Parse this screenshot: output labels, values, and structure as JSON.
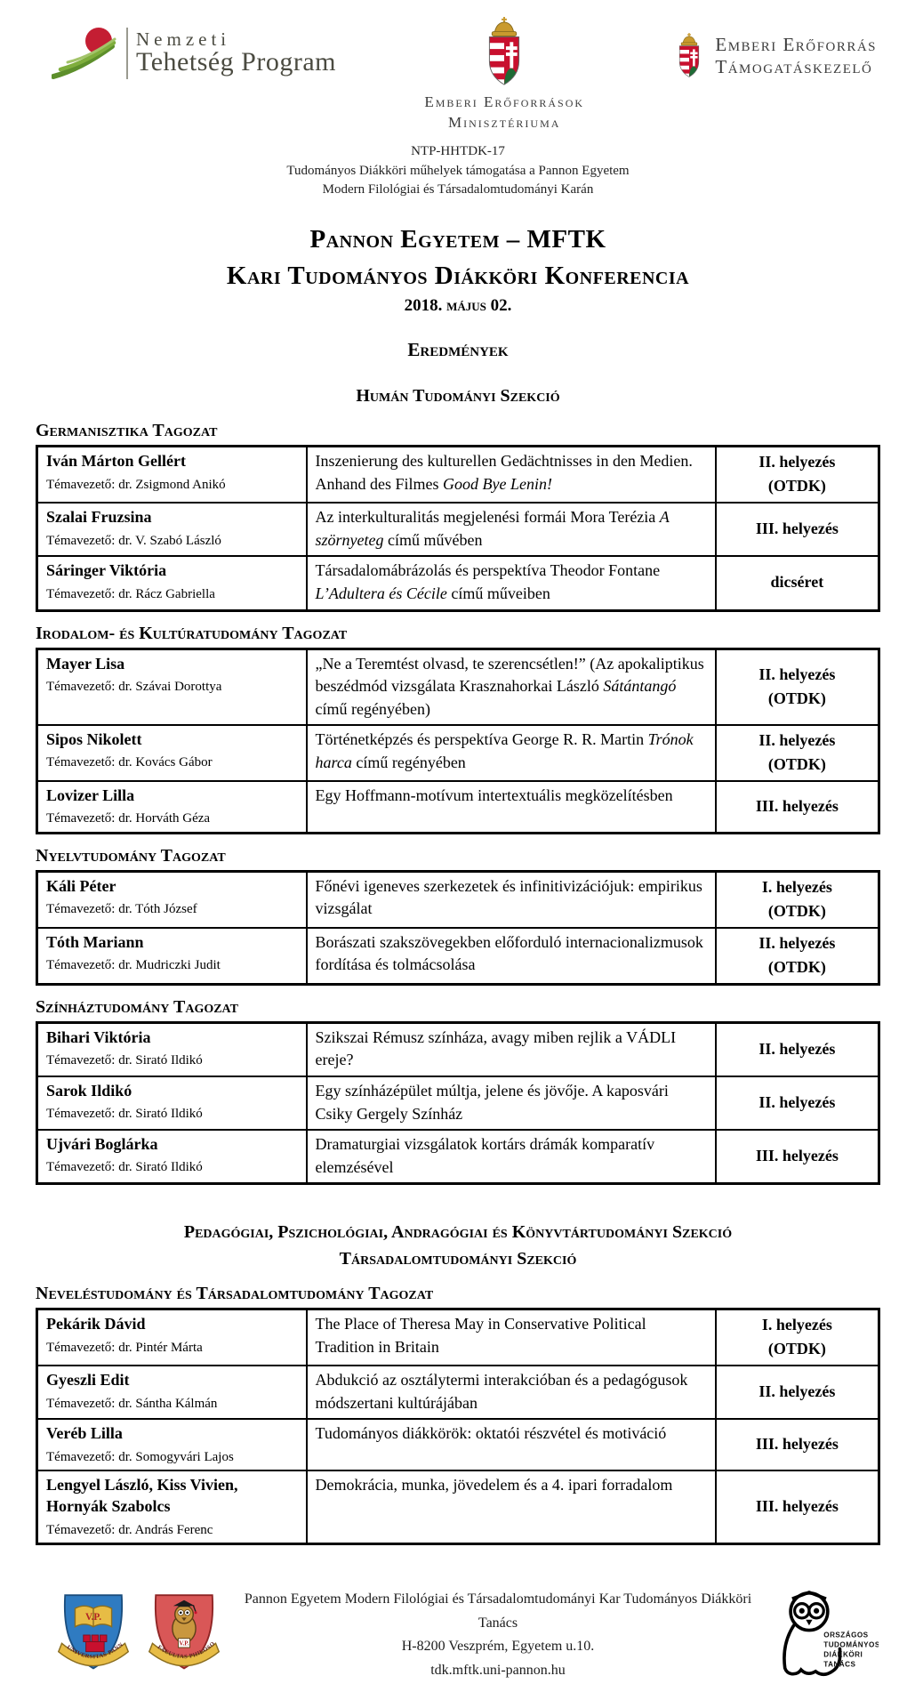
{
  "colors": {
    "ntp_red": "#c41e33",
    "ntp_green_dark": "#5d8f2b",
    "ntp_green_mid": "#7fae3d",
    "ntp_green_light": "#a3c46a",
    "coat_red": "#c8102e",
    "coat_green": "#1e6b35",
    "gold": "#c99a2e",
    "crest_blue": "#2f7bc1",
    "crest_red": "#d95757",
    "text": "#000000"
  },
  "header": {
    "ntp_logo": {
      "line1": "Nemzeti",
      "line2": "Tehetség Program"
    },
    "emmi_logo": {
      "line1": "Emberi Erőforrások",
      "line2": "Minisztériuma"
    },
    "emet_logo": {
      "line1": "Emberi Erőforrás",
      "line2": "Támogatáskezelő"
    },
    "program": {
      "code": "NTP-HHTDK-17",
      "line1": "Tudományos Diákköri műhelyek támogatása a Pannon Egyetem",
      "line2": "Modern Filológiai és Társadalomtudományi Karán"
    }
  },
  "title": {
    "line1": "Pannon Egyetem – MFTK",
    "line2": "Kari Tudományos Diákköri Konferencia",
    "date": "2018. május 02.",
    "results": "Eredmények"
  },
  "section_headings": {
    "human": "Humán Tudományi Szekció",
    "pedagogy_line1": "Pedagógiai, Pszichológiai, Andragógiai és Könyvtártudományi Szekció",
    "pedagogy_line2": "Társadalomtudományi Szekció"
  },
  "sections": [
    {
      "label": "Germanisztika Tagozat",
      "rows": [
        {
          "name": "Iván Márton Gellért",
          "supervisor": "Témavezető: dr. Zsigmond Anikó",
          "title": [
            {
              "t": "Inszenierung des kulturellen Gedächtnisses in den Medien. Anhand des Filmes "
            },
            {
              "t": "Good Bye Lenin!",
              "i": true
            }
          ],
          "award": [
            "II. helyezés",
            "(OTDK)"
          ]
        },
        {
          "name": "Szalai Fruzsina",
          "supervisor": "Témavezető: dr. V. Szabó László",
          "title": [
            {
              "t": "Az interkulturalitás megjelenési formái Mora Terézia "
            },
            {
              "t": "A szörnyeteg",
              "i": true
            },
            {
              "t": " című művében"
            }
          ],
          "award": [
            "III. helyezés"
          ]
        },
        {
          "name": "Sáringer Viktória",
          "supervisor": "Témavezető: dr. Rácz Gabriella",
          "title": [
            {
              "t": "Társadalomábrázolás és perspektíva Theodor Fontane "
            },
            {
              "t": "L’Adultera és Cécile",
              "i": true
            },
            {
              "t": " című műveiben"
            }
          ],
          "award": [
            "dicséret"
          ]
        }
      ]
    },
    {
      "label": "Irodalom- és Kultúratudomány Tagozat",
      "rows": [
        {
          "name": "Mayer Lisa",
          "supervisor": "Témavezető: dr. Szávai Dorottya",
          "title": [
            {
              "t": "„Ne a Teremtést olvasd, te szerencsétlen!” (Az apokaliptikus beszédmód vizsgálata Krasznahorkai László "
            },
            {
              "t": "Sátántangó",
              "i": true
            },
            {
              "t": " című regényében)"
            }
          ],
          "award": [
            "II. helyezés",
            "(OTDK)"
          ]
        },
        {
          "name": "Sipos Nikolett",
          "supervisor": "Témavezető: dr. Kovács Gábor",
          "title": [
            {
              "t": "Történetképzés és perspektíva George R. R. Martin "
            },
            {
              "t": "Trónok harca",
              "i": true
            },
            {
              "t": " című regényében"
            }
          ],
          "award": [
            "II. helyezés",
            "(OTDK)"
          ]
        },
        {
          "name": "Lovizer Lilla",
          "supervisor": "Témavezető: dr. Horváth Géza",
          "title": [
            {
              "t": "Egy Hoffmann-motívum intertextuális megközelítésben"
            }
          ],
          "award": [
            "III. helyezés"
          ]
        }
      ]
    },
    {
      "label": "Nyelvtudomány Tagozat",
      "rows": [
        {
          "name": "Káli Péter",
          "supervisor": "Témavezető: dr. Tóth József",
          "title": [
            {
              "t": "Főnévi igeneves szerkezetek és infinitivizációjuk: empirikus vizsgálat"
            }
          ],
          "award": [
            "I. helyezés",
            "(OTDK)"
          ]
        },
        {
          "name": "Tóth Mariann",
          "supervisor": "Témavezető: dr. Mudriczki Judit",
          "title": [
            {
              "t": "Borászati szakszövegekben előforduló internacionalizmusok fordítása és tolmácsolása"
            }
          ],
          "award": [
            "II. helyezés",
            "(OTDK)"
          ]
        }
      ]
    },
    {
      "label": "Színháztudomány Tagozat",
      "rows": [
        {
          "name": "Bihari Viktória",
          "supervisor": "Témavezető: dr. Sirató Ildikó",
          "title": [
            {
              "t": "Szikszai Rémusz színháza, avagy miben rejlik a VÁDLI ereje?"
            }
          ],
          "award": [
            "II. helyezés"
          ]
        },
        {
          "name": "Sarok Ildikó",
          "supervisor": "Témavezető: dr. Sirató Ildikó",
          "title": [
            {
              "t": "Egy színházépület múltja, jelene és jövője. A kaposvári Csiky Gergely Színház"
            }
          ],
          "award": [
            "II. helyezés"
          ]
        },
        {
          "name": "Ujvári Boglárka",
          "supervisor": "Témavezető: dr. Sirató Ildikó",
          "title": [
            {
              "t": "Dramaturgiai vizsgálatok kortárs drámák komparatív elemzésével"
            }
          ],
          "award": [
            "III. helyezés"
          ]
        }
      ]
    },
    {
      "label": "Neveléstudomány és Társadalomtudomány Tagozat",
      "rows": [
        {
          "name": "Pekárik Dávid",
          "supervisor": "Témavezető: dr. Pintér Márta",
          "title": [
            {
              "t": "The Place of Theresa May in Conservative Political Tradition in Britain"
            }
          ],
          "award": [
            "I. helyezés",
            "(OTDK)"
          ]
        },
        {
          "name": "Gyeszli Edit",
          "supervisor": "Témavezető: dr. Sántha Kálmán",
          "title": [
            {
              "t": "Abdukció az osztálytermi interakcióban és a pedagógusok módszertani kultúrájában"
            }
          ],
          "award": [
            "II. helyezés"
          ]
        },
        {
          "name": "Veréb Lilla",
          "supervisor": "Témavezető: dr. Somogyvári Lajos",
          "title": [
            {
              "t": "Tudományos diákkörök: oktatói részvétel és motiváció"
            }
          ],
          "award": [
            "III. helyezés"
          ]
        },
        {
          "name": "Lengyel László, Kiss Vivien, Hornyák Szabolcs",
          "supervisor": "Témavezető: dr. András Ferenc",
          "title": [
            {
              "t": "Demokrácia, munka, jövedelem és a 4. ipari forradalom"
            }
          ],
          "award": [
            "III. helyezés"
          ]
        }
      ]
    }
  ],
  "footer": {
    "org": "Pannon Egyetem Modern Filológiai és Társadalomtudományi Kar Tudományos Diákköri Tanács",
    "address": "H-8200 Veszprém, Egyetem u.10.",
    "website": "tdk.mftk.uni-pannon.hu",
    "crest_university_initials": "V.P.",
    "crest_university_banner": "UNIVERSITAS PANNONICA",
    "crest_faculty_initials": "V.P.",
    "crest_faculty_banner": "FACULTAS PHILOSOPHICA",
    "otdk": {
      "line1": "ORSZÁGOS",
      "line2": "TUDOMÁNYOS",
      "line3": "DIÁKKÖRI",
      "line4": "TANÁCS"
    }
  }
}
